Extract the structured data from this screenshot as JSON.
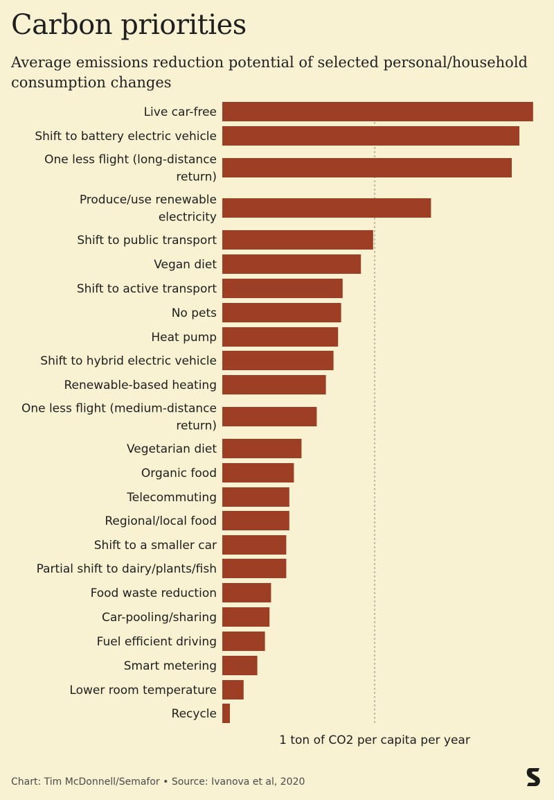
{
  "header": {
    "title": "Carbon priorities",
    "subtitle": "Average emissions reduction potential of selected personal/household consumption changes"
  },
  "footer": {
    "credit": "Chart: Tim McDonnell/Semafor • Source: Ivanova et al, 2020"
  },
  "logo": {
    "icon": "semafor-logo-icon",
    "color": "#1d1d1b"
  },
  "colors": {
    "background": "#f8f2d3",
    "bar": "#9c3f24",
    "reference_line": "#8a8575"
  },
  "chart_data": {
    "type": "bar",
    "orientation": "horizontal",
    "value_unit": "tons of CO2 per capita per year",
    "xlim": [
      0,
      2.1
    ],
    "reference_line": {
      "value": 1,
      "label": "1 ton of CO2 per capita per year",
      "style": "dashed"
    },
    "grid": false,
    "categories": [
      [
        "Live car-free"
      ],
      [
        "Shift to battery electric vehicle"
      ],
      [
        "One less flight (long-distance",
        "return)"
      ],
      [
        "Produce/use renewable",
        "electricity"
      ],
      [
        "Shift to public transport"
      ],
      [
        "Vegan diet"
      ],
      [
        "Shift to active transport"
      ],
      [
        "No pets"
      ],
      [
        "Heat pump"
      ],
      [
        "Shift to hybrid electric vehicle"
      ],
      [
        "Renewable-based heating"
      ],
      [
        "One less flight (medium-distance",
        "return)"
      ],
      [
        "Vegetarian diet"
      ],
      [
        "Organic food"
      ],
      [
        "Telecommuting"
      ],
      [
        "Regional/local food"
      ],
      [
        "Shift to a smaller car"
      ],
      [
        "Partial shift to dairy/plants/fish"
      ],
      [
        "Food waste reduction"
      ],
      [
        "Car-pooling/sharing"
      ],
      [
        "Fuel efficient driving"
      ],
      [
        "Smart metering"
      ],
      [
        "Lower room temperature"
      ],
      [
        "Recycle"
      ]
    ],
    "values": [
      2.04,
      1.95,
      1.9,
      1.37,
      0.99,
      0.91,
      0.79,
      0.78,
      0.76,
      0.73,
      0.68,
      0.62,
      0.52,
      0.47,
      0.44,
      0.44,
      0.42,
      0.42,
      0.32,
      0.31,
      0.28,
      0.23,
      0.14,
      0.05
    ]
  }
}
